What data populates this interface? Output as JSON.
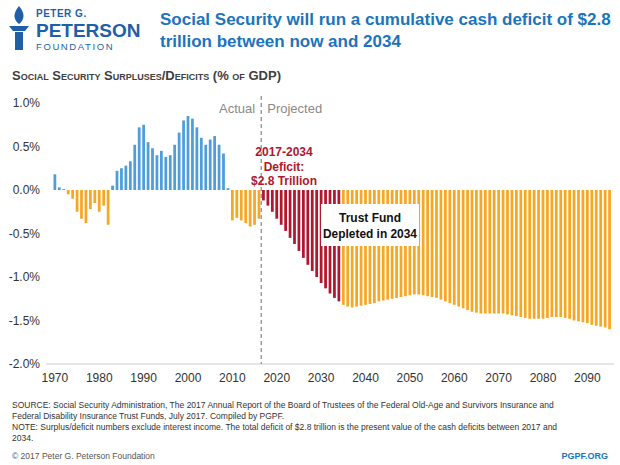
{
  "logo": [
    "PETER G.",
    "PETERSON",
    "FOUNDATION"
  ],
  "copyright": "© 2017 Peter G. Peterson Foundation",
  "site": "PGPF.ORG",
  "chart_data": {
    "type": "bar",
    "title": [
      "Social Security will run a cumulative cash deficit of $2.8",
      "trillion between now and 2034"
    ],
    "subtitle": "Social Security Surpluses/Deficits (% of GDP)",
    "x": [
      1970,
      1971,
      1972,
      1973,
      1974,
      1975,
      1976,
      1977,
      1978,
      1979,
      1980,
      1981,
      1982,
      1983,
      1984,
      1985,
      1986,
      1987,
      1988,
      1989,
      1990,
      1991,
      1992,
      1993,
      1994,
      1995,
      1996,
      1997,
      1998,
      1999,
      2000,
      2001,
      2002,
      2003,
      2004,
      2005,
      2006,
      2007,
      2008,
      2009,
      2010,
      2011,
      2012,
      2013,
      2014,
      2015,
      2016,
      2017,
      2018,
      2019,
      2020,
      2021,
      2022,
      2023,
      2024,
      2025,
      2026,
      2027,
      2028,
      2029,
      2030,
      2031,
      2032,
      2033,
      2034,
      2035,
      2036,
      2037,
      2038,
      2039,
      2040,
      2041,
      2042,
      2043,
      2044,
      2045,
      2046,
      2047,
      2048,
      2049,
      2050,
      2051,
      2052,
      2053,
      2054,
      2055,
      2056,
      2057,
      2058,
      2059,
      2060,
      2061,
      2062,
      2063,
      2064,
      2065,
      2066,
      2067,
      2068,
      2069,
      2070,
      2071,
      2072,
      2073,
      2074,
      2075,
      2076,
      2077,
      2078,
      2079,
      2080,
      2081,
      2082,
      2083,
      2084,
      2085,
      2086,
      2087,
      2088,
      2089,
      2090,
      2091,
      2092,
      2093,
      2094,
      2095
    ],
    "values": [
      0.18,
      0.03,
      0.01,
      -0.05,
      -0.1,
      -0.25,
      -0.33,
      -0.38,
      -0.22,
      -0.15,
      -0.25,
      -0.18,
      -0.4,
      0.05,
      0.22,
      0.25,
      0.28,
      0.33,
      0.52,
      0.72,
      0.75,
      0.55,
      0.48,
      0.4,
      0.45,
      0.38,
      0.4,
      0.52,
      0.66,
      0.8,
      0.85,
      0.82,
      0.72,
      0.6,
      0.52,
      0.58,
      0.62,
      0.52,
      0.42,
      0.02,
      -0.35,
      -0.32,
      -0.35,
      -0.38,
      -0.42,
      -0.4,
      -0.33,
      -0.12,
      -0.18,
      -0.25,
      -0.33,
      -0.4,
      -0.47,
      -0.55,
      -0.62,
      -0.7,
      -0.78,
      -0.86,
      -0.93,
      -1.0,
      -1.07,
      -1.13,
      -1.19,
      -1.24,
      -1.28,
      -1.32,
      -1.34,
      -1.35,
      -1.34,
      -1.33,
      -1.32,
      -1.31,
      -1.3,
      -1.28,
      -1.27,
      -1.26,
      -1.25,
      -1.24,
      -1.23,
      -1.22,
      -1.21,
      -1.2,
      -1.2,
      -1.21,
      -1.22,
      -1.23,
      -1.24,
      -1.26,
      -1.28,
      -1.3,
      -1.32,
      -1.34,
      -1.36,
      -1.38,
      -1.4,
      -1.41,
      -1.42,
      -1.42,
      -1.42,
      -1.42,
      -1.42,
      -1.42,
      -1.43,
      -1.44,
      -1.45,
      -1.46,
      -1.47,
      -1.48,
      -1.48,
      -1.48,
      -1.48,
      -1.47,
      -1.46,
      -1.46,
      -1.46,
      -1.47,
      -1.48,
      -1.5,
      -1.51,
      -1.52,
      -1.53,
      -1.55,
      -1.56,
      -1.57,
      -1.58,
      -1.6
    ],
    "colors": [
      "#4d9ed9",
      "#4d9ed9",
      "#4d9ed9",
      "#f7a823",
      "#f7a823",
      "#f7a823",
      "#f7a823",
      "#f7a823",
      "#f7a823",
      "#f7a823",
      "#f7a823",
      "#f7a823",
      "#f7a823",
      "#4d9ed9",
      "#4d9ed9",
      "#4d9ed9",
      "#4d9ed9",
      "#4d9ed9",
      "#4d9ed9",
      "#4d9ed9",
      "#4d9ed9",
      "#4d9ed9",
      "#4d9ed9",
      "#4d9ed9",
      "#4d9ed9",
      "#4d9ed9",
      "#4d9ed9",
      "#4d9ed9",
      "#4d9ed9",
      "#4d9ed9",
      "#4d9ed9",
      "#4d9ed9",
      "#4d9ed9",
      "#4d9ed9",
      "#4d9ed9",
      "#4d9ed9",
      "#4d9ed9",
      "#4d9ed9",
      "#4d9ed9",
      "#4d9ed9",
      "#f7a823",
      "#f7a823",
      "#f7a823",
      "#f7a823",
      "#f7a823",
      "#f7a823",
      "#f7a823",
      "#b0172e",
      "#b0172e",
      "#b0172e",
      "#b0172e",
      "#b0172e",
      "#b0172e",
      "#b0172e",
      "#b0172e",
      "#b0172e",
      "#b0172e",
      "#b0172e",
      "#b0172e",
      "#b0172e",
      "#b0172e",
      "#b0172e",
      "#b0172e",
      "#b0172e",
      "#b0172e",
      "#f7a823",
      "#f7a823",
      "#f7a823",
      "#f7a823",
      "#f7a823",
      "#f7a823",
      "#f7a823",
      "#f7a823",
      "#f7a823",
      "#f7a823",
      "#f7a823",
      "#f7a823",
      "#f7a823",
      "#f7a823",
      "#f7a823",
      "#f7a823",
      "#f7a823",
      "#f7a823",
      "#f7a823",
      "#f7a823",
      "#f7a823",
      "#f7a823",
      "#f7a823",
      "#f7a823",
      "#f7a823",
      "#f7a823",
      "#f7a823",
      "#f7a823",
      "#f7a823",
      "#f7a823",
      "#f7a823",
      "#f7a823",
      "#f7a823",
      "#f7a823",
      "#f7a823",
      "#f7a823",
      "#f7a823",
      "#f7a823",
      "#f7a823",
      "#f7a823",
      "#f7a823",
      "#f7a823",
      "#f7a823",
      "#f7a823",
      "#f7a823",
      "#f7a823",
      "#f7a823",
      "#f7a823",
      "#f7a823",
      "#f7a823",
      "#f7a823",
      "#f7a823",
      "#f7a823",
      "#f7a823",
      "#f7a823",
      "#f7a823",
      "#f7a823",
      "#f7a823",
      "#f7a823",
      "#f7a823",
      "#f7a823"
    ],
    "xlim": [
      1968,
      2096
    ],
    "xticks": [
      1970,
      1980,
      1990,
      2000,
      2010,
      2020,
      2030,
      2040,
      2050,
      2060,
      2070,
      2080,
      2090
    ],
    "ylim": [
      -2,
      1
    ],
    "yticks": [
      {
        "value": 1,
        "label": "1.0%"
      },
      {
        "value": 0.5,
        "label": "0.5%"
      },
      {
        "value": 0,
        "label": "0.0%"
      },
      {
        "value": -0.5,
        "label": "-0.5%"
      },
      {
        "value": -1,
        "label": "-1.0%"
      },
      {
        "value": -1.5,
        "label": "-1.5%"
      },
      {
        "value": -2,
        "label": "-2.0%"
      }
    ],
    "grid": false,
    "divider": 2016.5,
    "annotations": {
      "actual": "Actual",
      "projected": "Projected",
      "deficit": [
        "2017-2034",
        "Deficit:",
        "$2.8 Trillion"
      ],
      "depleted": [
        "Trust Fund",
        "Depleted in 2034"
      ]
    },
    "source": [
      "SOURCE: Social Security Administration, The 2017 Annual Report of the Board of Trustees of the Federal Old-Age and Survivors Insurance and",
      "Federal Disability Insurance Trust Funds, July 2017. Compiled by PGPF."
    ],
    "note": [
      "NOTE: Surplus/deficit numbers exclude interest income. The total deficit of $2.8 trillion is the present value of the cash deficits between 2017 and",
      "2034."
    ]
  }
}
